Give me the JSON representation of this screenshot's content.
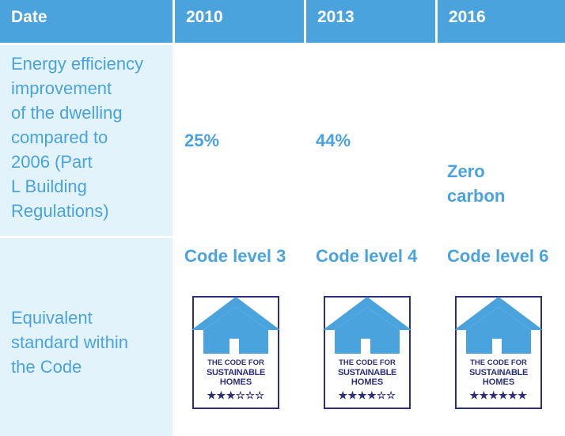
{
  "header": {
    "col0": "Date",
    "col1": "2010",
    "col2": "2013",
    "col3": "2016"
  },
  "row1": {
    "label_lines": [
      "Energy efficiency",
      "improvement",
      "of the dwelling",
      "compared to",
      "2006 (Part",
      "L Building",
      "Regulations)"
    ],
    "v2010": "25%",
    "v2013": "44%",
    "v2016_lines": [
      "Zero",
      "carbon"
    ]
  },
  "row2": {
    "label_lines": [
      "Equivalent",
      "standard within",
      "the Code"
    ],
    "c2010": "Code level 3",
    "c2013": "Code level 4",
    "c2016": "Code level 6"
  },
  "badge": {
    "line1": "THE CODE FOR",
    "line2": "SUSTAINABLE",
    "line3": "HOMES",
    "stars_2010": "★★★☆☆☆",
    "stars_2013": "★★★★☆☆",
    "stars_2016": "★★★★★★",
    "house_color": "#4aa3dc",
    "text_color": "#2b2f7a"
  },
  "colors": {
    "header_bg": "#4aa3dc",
    "label_bg": "#e3f3fb",
    "text_blue": "#4aa3dc"
  }
}
